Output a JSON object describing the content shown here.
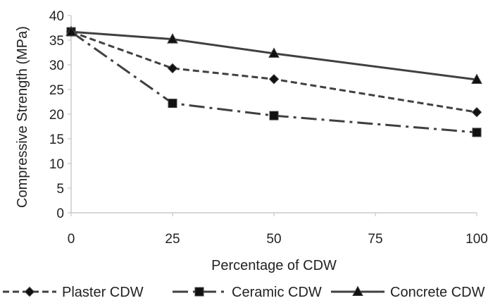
{
  "chart_data": {
    "type": "line",
    "title": "",
    "xlabel": "Percentage of CDW",
    "ylabel": "Compressive Strength (MPa)",
    "x": [
      0,
      25,
      50,
      75,
      100
    ],
    "x_ticks": [
      "0",
      "25",
      "50",
      "75",
      "100"
    ],
    "ylim": [
      0,
      40
    ],
    "y_ticks": [
      "0",
      "5",
      "10",
      "15",
      "20",
      "25",
      "30",
      "35",
      "40"
    ],
    "grid": false,
    "legend_position": "bottom",
    "series": [
      {
        "name": "Plaster CDW",
        "x": [
          0,
          25,
          50,
          100
        ],
        "values": [
          36.7,
          29.3,
          27.1,
          20.4
        ],
        "marker": "diamond",
        "line_style": "dashed",
        "color": "#404040"
      },
      {
        "name": "Ceramic CDW",
        "x": [
          0,
          25,
          50,
          100
        ],
        "values": [
          36.7,
          22.2,
          19.7,
          16.3
        ],
        "marker": "square",
        "line_style": "dash-dot",
        "color": "#404040"
      },
      {
        "name": "Concrete CDW",
        "x": [
          0,
          25,
          50,
          100
        ],
        "values": [
          36.7,
          35.2,
          32.3,
          27.0
        ],
        "marker": "triangle",
        "line_style": "solid",
        "color": "#404040"
      }
    ]
  }
}
